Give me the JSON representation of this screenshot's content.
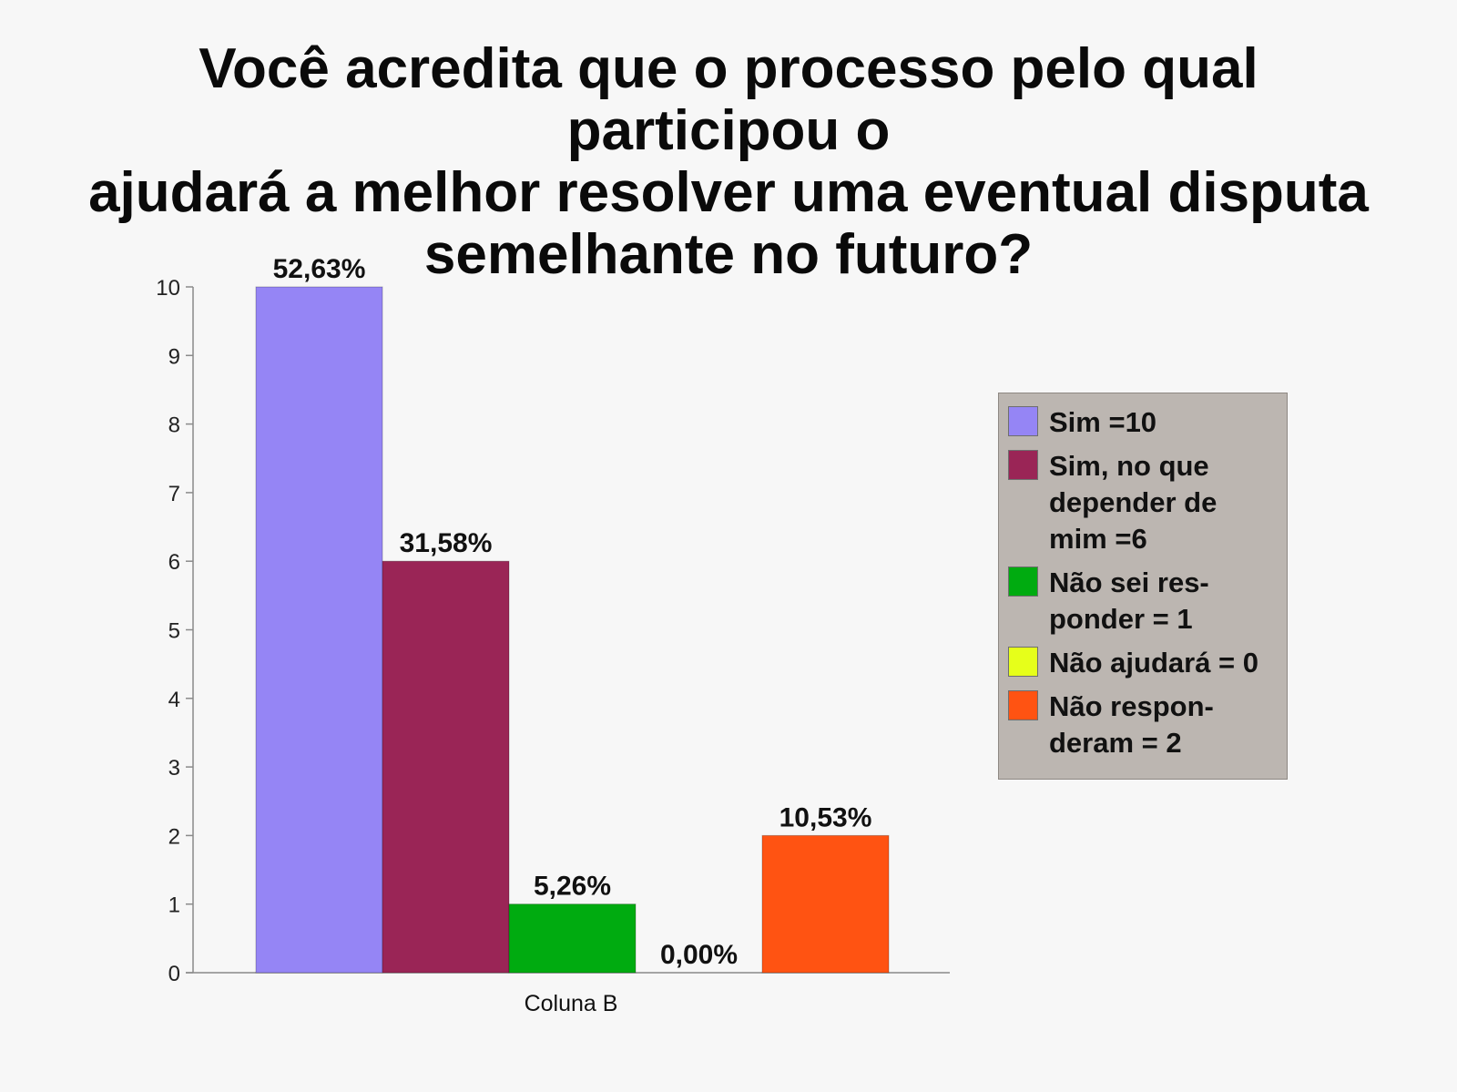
{
  "chart_data": {
    "type": "bar",
    "title_lines": [
      "Você acredita que o processo pelo qual participou o",
      "ajudará a melhor resolver uma eventual disputa",
      "semelhante no futuro?"
    ],
    "categories": [
      "Coluna B"
    ],
    "ylim": [
      0,
      10
    ],
    "yticks": [
      "0",
      "1",
      "2",
      "3",
      "4",
      "5",
      "6",
      "7",
      "8",
      "9",
      "10"
    ],
    "grid": false,
    "legend_position": "right",
    "series": [
      {
        "name": "Sim =10",
        "values": [
          10
        ],
        "color": "#9585f5",
        "data_label": "52,63%"
      },
      {
        "name": "Sim, no que\ndepender de\nmim =6",
        "values": [
          6
        ],
        "color": "#9a2556",
        "data_label": "31,58%"
      },
      {
        "name": "Não sei res-\nponder = 1",
        "values": [
          1
        ],
        "color": "#00ab10",
        "data_label": "5,26%"
      },
      {
        "name": "Não ajudará = 0",
        "values": [
          0
        ],
        "color": "#e6ff1a",
        "data_label": "0,00%"
      },
      {
        "name": "Não respon-\nderam = 2",
        "values": [
          2
        ],
        "color": "#ff5312",
        "data_label": "10,53%"
      }
    ]
  }
}
